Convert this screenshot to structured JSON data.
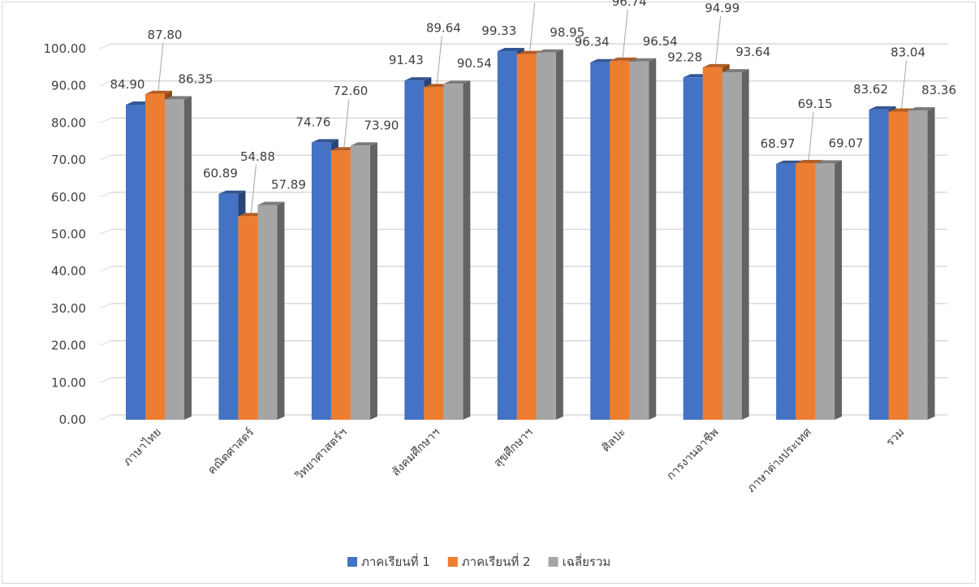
{
  "chart_data": {
    "type": "bar",
    "title": "",
    "xlabel": "",
    "ylabel": "",
    "ylim": [
      0,
      100
    ],
    "ytick_step": 10,
    "tick_decimals": 2,
    "grid": true,
    "legend": "bottom",
    "categories": [
      "ภาษาไทย",
      "คณิตศาสตร์",
      "วิทยาศาสตร์ฯ",
      "สังคมศึกษาฯ",
      "สุขศึกษาฯ",
      "ศิลปะ",
      "การงานอาชีพ",
      "ภาษาต่างประเทศ",
      "รวม"
    ],
    "series": [
      {
        "name": "ภาคเรียนที่ 1",
        "color": "#4472C4",
        "values": [
          84.9,
          60.89,
          74.76,
          91.43,
          99.33,
          96.34,
          92.28,
          68.97,
          83.62
        ]
      },
      {
        "name": "ภาคเรียนที่ 2",
        "color": "#ED7D31",
        "values": [
          87.8,
          54.88,
          72.6,
          89.64,
          98.56,
          96.74,
          94.99,
          69.15,
          83.04
        ]
      },
      {
        "name": "เฉลี่ยรวม",
        "color": "#A5A5A5",
        "values": [
          86.35,
          57.89,
          73.9,
          90.54,
          98.95,
          96.54,
          93.64,
          69.07,
          83.36
        ]
      }
    ]
  }
}
